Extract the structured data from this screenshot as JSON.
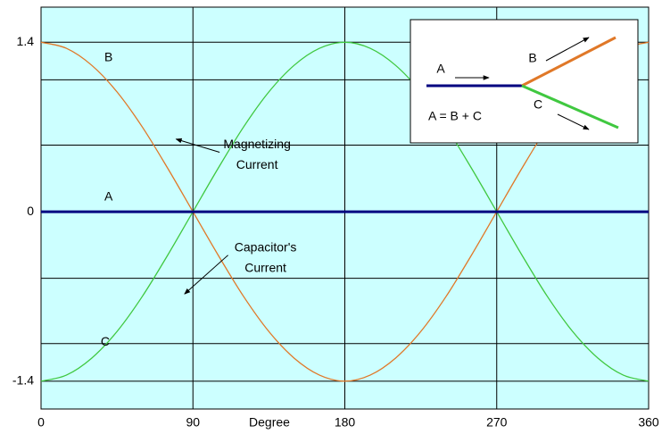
{
  "chart_data": {
    "type": "line",
    "x_label": "Degree",
    "x": [
      0,
      15,
      30,
      45,
      60,
      75,
      90,
      105,
      120,
      135,
      150,
      165,
      180,
      195,
      210,
      225,
      240,
      255,
      270,
      285,
      300,
      315,
      330,
      345,
      360
    ],
    "series": [
      {
        "name": "A",
        "color": "#000080",
        "values": [
          0,
          0,
          0,
          0,
          0,
          0,
          0,
          0,
          0,
          0,
          0,
          0,
          0,
          0,
          0,
          0,
          0,
          0,
          0,
          0,
          0,
          0,
          0,
          0,
          0
        ]
      },
      {
        "name": "B",
        "color": "#e07828",
        "values": [
          1.4,
          1.35,
          1.21,
          0.99,
          0.7,
          0.36,
          0,
          -0.36,
          -0.7,
          -0.99,
          -1.21,
          -1.35,
          -1.4,
          -1.35,
          -1.21,
          -0.99,
          -0.7,
          -0.36,
          0,
          0.36,
          0.7,
          0.99,
          1.21,
          1.35,
          1.4
        ]
      },
      {
        "name": "C",
        "color": "#40c840",
        "values": [
          -1.4,
          -1.35,
          -1.21,
          -0.99,
          -0.7,
          -0.36,
          0,
          0.36,
          0.7,
          0.99,
          1.21,
          1.35,
          1.4,
          1.35,
          1.21,
          0.99,
          0.7,
          0.36,
          0,
          -0.36,
          -0.7,
          -0.99,
          -1.21,
          -1.35,
          -1.4
        ]
      }
    ],
    "xlim": [
      0,
      360
    ],
    "xticks": [
      0,
      90,
      180,
      270,
      360
    ],
    "ylim": [
      -1.63,
      1.69
    ],
    "yticks": [
      -1.4,
      0,
      1.4
    ],
    "ygrid": [
      -1.09,
      -0.55,
      0.55,
      1.09
    ],
    "grid": true,
    "background": "#ccffff",
    "annotations": [
      {
        "lines": [
          "Magnetizing",
          "Current"
        ],
        "x": 128,
        "y": 0.55,
        "arrow_x": 80,
        "arrow_y": 0.6
      },
      {
        "lines": [
          "Capacitor's",
          "Current"
        ],
        "x": 133,
        "y": -0.3,
        "arrow_x": 85,
        "arrow_y": -0.68
      }
    ],
    "inset": {
      "labels": [
        "A",
        "B",
        "C"
      ],
      "equation": "A = B + C"
    }
  }
}
